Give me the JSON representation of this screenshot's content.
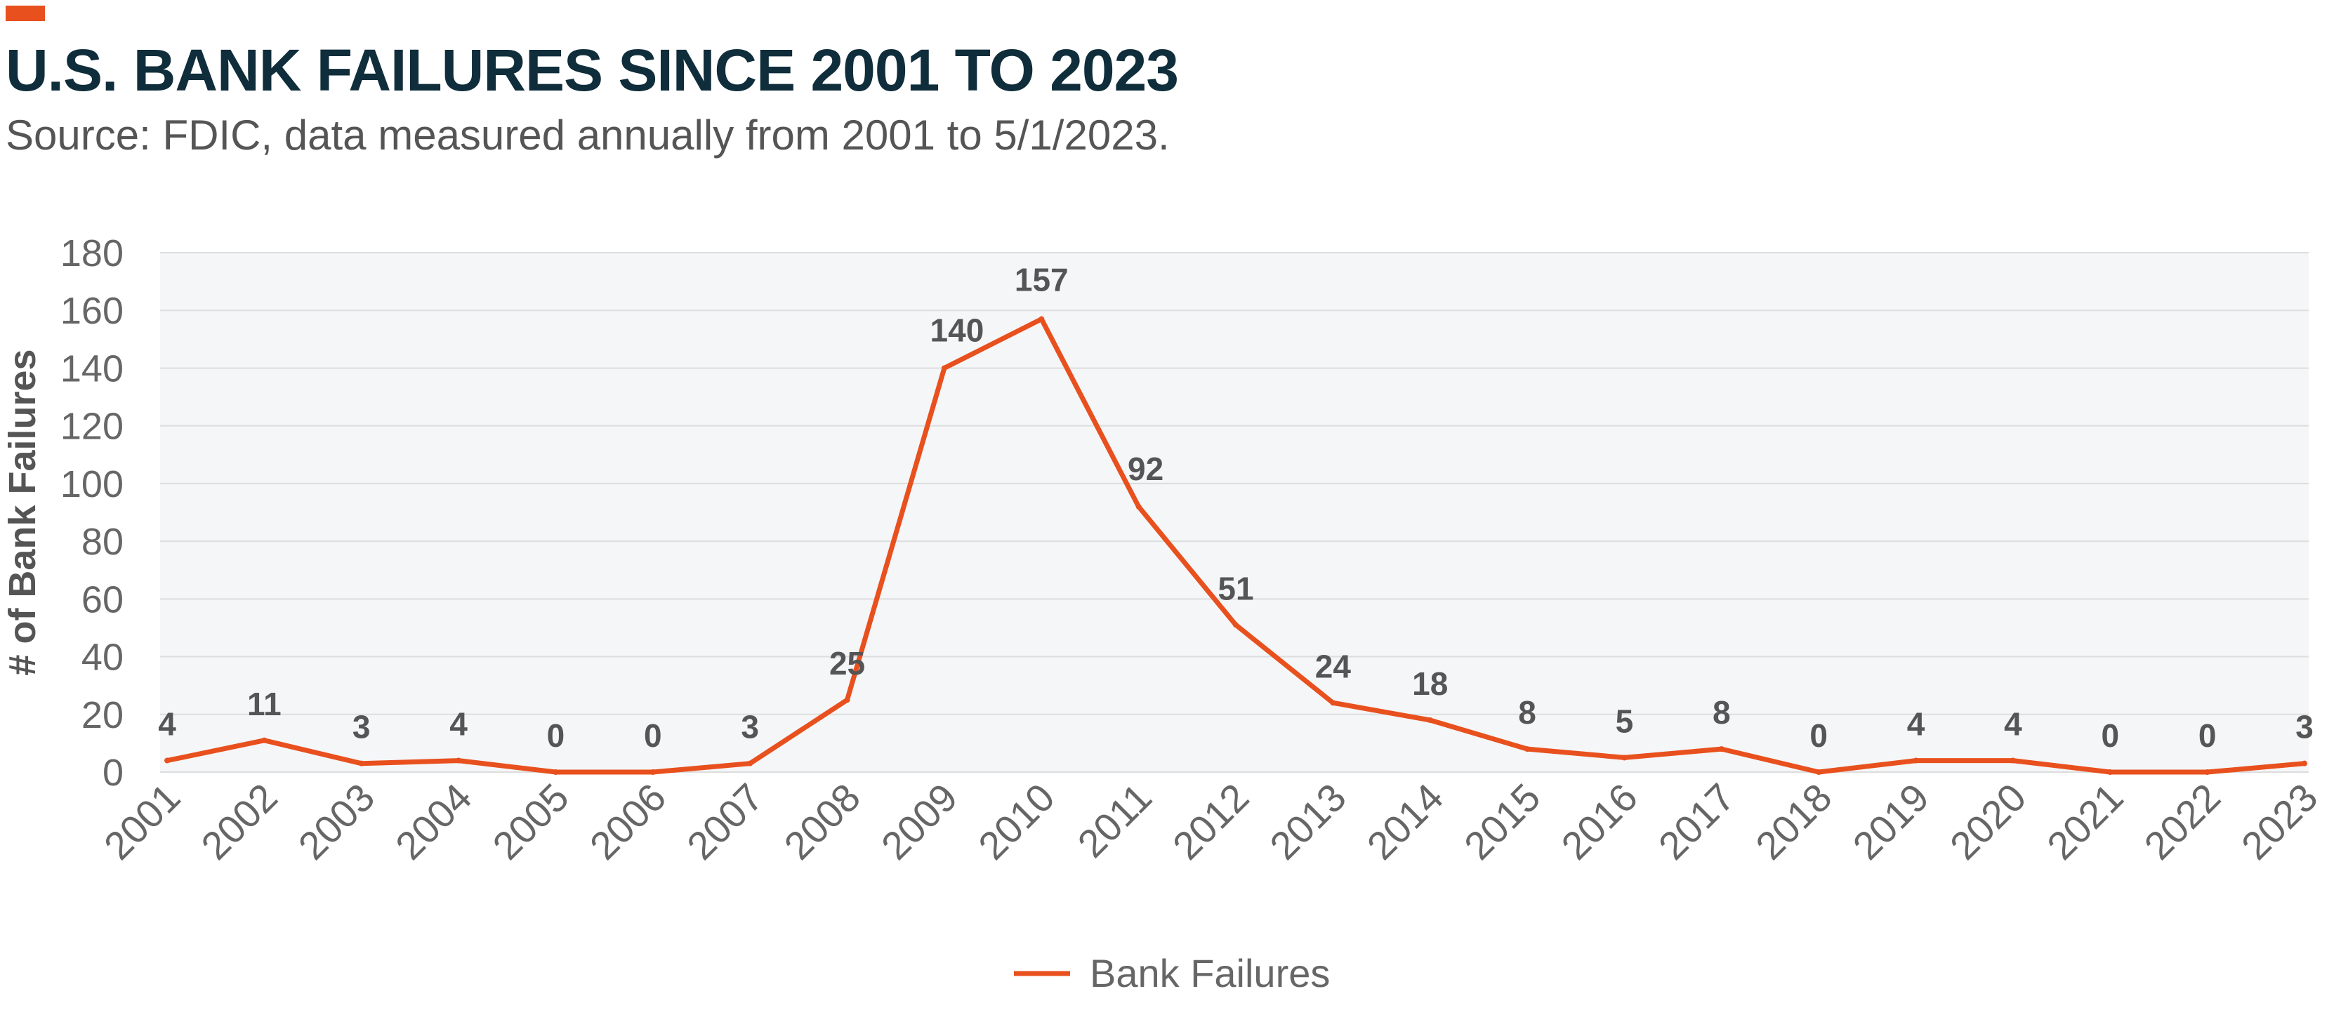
{
  "header": {
    "title": "U.S. BANK FAILURES SINCE 2001 TO 2023",
    "subtitle": "Source: FDIC, data measured annually from 2001 to 5/1/2023."
  },
  "colors": {
    "accent": "#E8501E",
    "line": "#E8501E",
    "plot_bg": "#F5F6F8",
    "grid": "#DDDDDD",
    "axis_text": "#666666",
    "data_label": "#555555"
  },
  "chart_data": {
    "type": "line",
    "ylabel": "# of Bank Failures",
    "xlabel": "",
    "ylim": [
      0,
      180
    ],
    "yticks": [
      0,
      20,
      40,
      60,
      80,
      100,
      120,
      140,
      160,
      180
    ],
    "grid": true,
    "legend_position": "bottom-center",
    "categories": [
      "2001",
      "2002",
      "2003",
      "2004",
      "2005",
      "2006",
      "2007",
      "2008",
      "2009",
      "2010",
      "2011",
      "2012",
      "2013",
      "2014",
      "2015",
      "2016",
      "2017",
      "2018",
      "2019",
      "2020",
      "2021",
      "2022",
      "2023"
    ],
    "series": [
      {
        "name": "Bank Failures",
        "values": [
          4,
          11,
          3,
          4,
          0,
          0,
          3,
          25,
          140,
          157,
          92,
          51,
          24,
          18,
          8,
          5,
          8,
          0,
          4,
          4,
          0,
          0,
          3
        ]
      }
    ]
  }
}
